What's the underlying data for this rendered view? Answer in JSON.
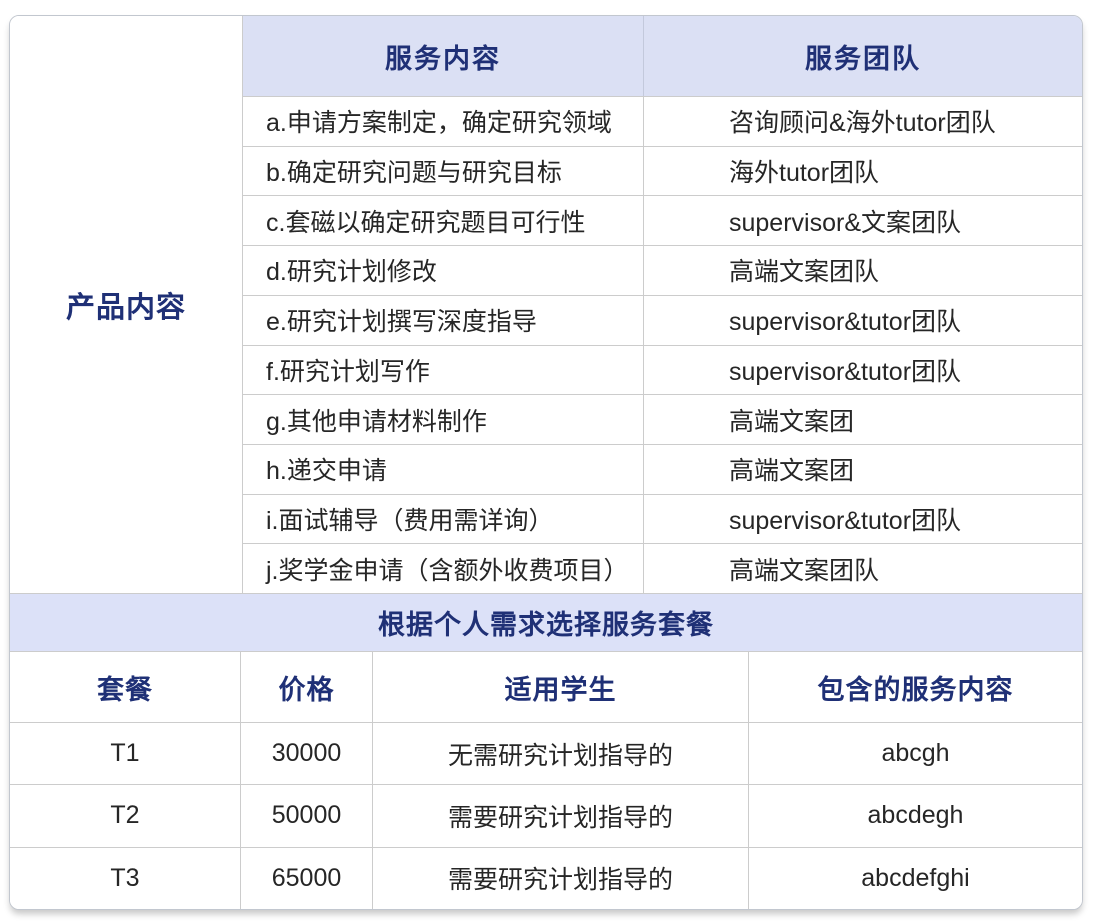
{
  "colors": {
    "navy": "#1f3076",
    "text": "#262626",
    "header_bg": "#dbe0f4",
    "banner_bg": "#dce1f8",
    "border": "#cccccc",
    "border_outer": "#c2c7cf"
  },
  "product_table": {
    "row_label": "产品内容",
    "columns": {
      "service": "服务内容",
      "team": "服务团队"
    },
    "rows": [
      {
        "service": "a.申请方案制定，确定研究领域",
        "team": "咨询顾问&海外tutor团队"
      },
      {
        "service": "b.确定研究问题与研究目标",
        "team": "海外tutor团队"
      },
      {
        "service": "c.套磁以确定研究题目可行性",
        "team": "supervisor&文案团队"
      },
      {
        "service": "d.研究计划修改",
        "team": "高端文案团队"
      },
      {
        "service": "e.研究计划撰写深度指导",
        "team": "supervisor&tutor团队"
      },
      {
        "service": "f.研究计划写作",
        "team": "supervisor&tutor团队"
      },
      {
        "service": "g.其他申请材料制作",
        "team": "高端文案团"
      },
      {
        "service": "h.递交申请",
        "team": "高端文案团"
      },
      {
        "service": "i.面试辅导（费用需详询）",
        "team": "supervisor&tutor团队"
      },
      {
        "service": "j.奖学金申请（含额外收费项目）",
        "team": "高端文案团队"
      }
    ]
  },
  "package_banner": {
    "title": "根据个人需求选择服务套餐"
  },
  "package_table": {
    "columns": {
      "package": "套餐",
      "price": "价格",
      "students": "适用学生",
      "includes": "包含的服务内容"
    },
    "rows": [
      {
        "package": "T1",
        "price": "30000",
        "students": "无需研究计划指导的",
        "includes": "abcgh"
      },
      {
        "package": "T2",
        "price": "50000",
        "students": "需要研究计划指导的",
        "includes": "abcdegh"
      },
      {
        "package": "T3",
        "price": "65000",
        "students": "需要研究计划指导的",
        "includes": "abcdefghi"
      }
    ]
  }
}
